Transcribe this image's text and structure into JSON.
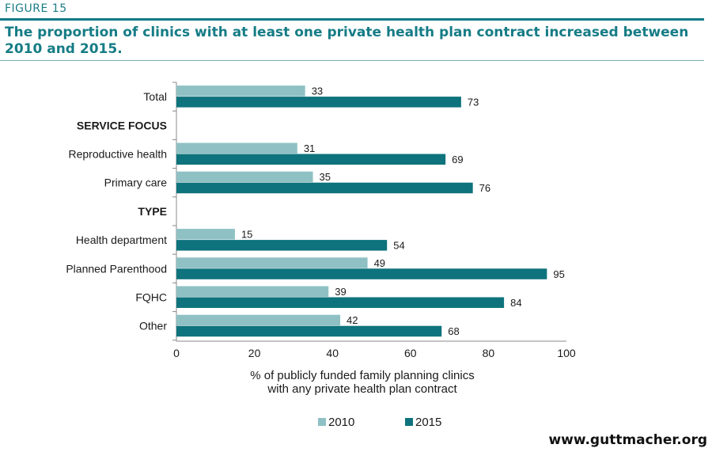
{
  "figure_label": "FIGURE 15",
  "title": "The proportion of clinics with at least one private health plan contract increased between 2010 and 2015.",
  "footer": "www.guttmacher.org",
  "colors": {
    "accent": "#0e7a84",
    "series_2010": "#8fc1c4",
    "series_2015": "#0e737c"
  },
  "chart_data": {
    "type": "bar",
    "orientation": "horizontal",
    "rows": [
      {
        "label": "Total",
        "kind": "category",
        "values": [
          33,
          73
        ]
      },
      {
        "label": "SERVICE FOCUS",
        "kind": "header"
      },
      {
        "label": "Reproductive health",
        "kind": "category",
        "values": [
          31,
          69
        ]
      },
      {
        "label": "Primary care",
        "kind": "category",
        "values": [
          35,
          76
        ]
      },
      {
        "label": "TYPE",
        "kind": "header"
      },
      {
        "label": "Health department",
        "kind": "category",
        "values": [
          15,
          54
        ]
      },
      {
        "label": "Planned Parenthood",
        "kind": "category",
        "values": [
          49,
          95
        ]
      },
      {
        "label": "FQHC",
        "kind": "category",
        "values": [
          39,
          84
        ]
      },
      {
        "label": "Other",
        "kind": "category",
        "values": [
          42,
          68
        ]
      }
    ],
    "series": [
      {
        "name": "2010",
        "color": "#8fc1c4"
      },
      {
        "name": "2015",
        "color": "#0e737c"
      }
    ],
    "xlabel": "% of publicly funded family planning clinics\nwith any private health plan contract",
    "xlim": [
      0,
      100
    ],
    "xticks": [
      0,
      20,
      40,
      60,
      80,
      100
    ],
    "legend_position": "bottom-center",
    "grid": false
  }
}
